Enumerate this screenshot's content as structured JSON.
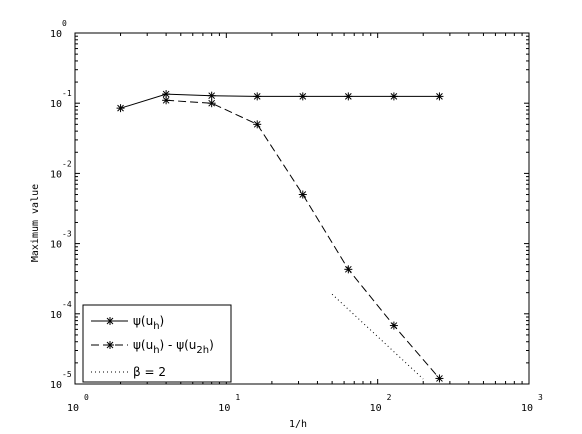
{
  "chart_data": {
    "type": "line",
    "xlabel": "1/h",
    "ylabel": "Maximum value",
    "xscale": "log",
    "yscale": "log",
    "xlim": [
      1,
      1000
    ],
    "ylim": [
      1e-05,
      1
    ],
    "xticks": [
      {
        "base": "10",
        "exp": "0",
        "value": 1
      },
      {
        "base": "10",
        "exp": "1",
        "value": 10
      },
      {
        "base": "10",
        "exp": "2",
        "value": 100
      },
      {
        "base": "10",
        "exp": "3",
        "value": 1000
      }
    ],
    "yticks": [
      {
        "base": "10",
        "exp": "0",
        "value": 1
      },
      {
        "base": "10",
        "exp": "-1",
        "value": 0.1
      },
      {
        "base": "10",
        "exp": "-2",
        "value": 0.01
      },
      {
        "base": "10",
        "exp": "-3",
        "value": 0.001
      },
      {
        "base": "10",
        "exp": "-4",
        "value": 0.0001
      },
      {
        "base": "10",
        "exp": "-5",
        "value": 1e-05
      }
    ],
    "grid": false,
    "legend_position": "bottom-left",
    "series": [
      {
        "name": "ψ(u_h)",
        "style": "solid",
        "marker": "asterisk",
        "x": [
          2,
          4,
          8,
          16,
          32,
          64,
          128,
          256
        ],
        "y": [
          0.085,
          0.135,
          0.128,
          0.125,
          0.125,
          0.125,
          0.125,
          0.125
        ]
      },
      {
        "name": "ψ(u_h) - ψ(u_2h)",
        "style": "dashed",
        "marker": "asterisk",
        "x": [
          4,
          8,
          16,
          32,
          64,
          128,
          256
        ],
        "y": [
          0.11,
          0.1,
          0.05,
          0.005,
          0.00043,
          6.8e-05,
          1.2e-05
        ]
      },
      {
        "name": "β = 2",
        "style": "dotted",
        "marker": "none",
        "x": [
          50,
          200
        ],
        "y": [
          0.00019,
          1.18e-05
        ]
      }
    ],
    "legend": [
      {
        "prefix": "ψ(u",
        "sub1": "h",
        "suffix": ")",
        "sub2": "",
        "suffix2": ""
      },
      {
        "prefix": "ψ(u",
        "sub1": "h",
        "suffix": ") - ψ(u",
        "sub2": "2h",
        "suffix2": ")"
      },
      {
        "prefix": "β = 2",
        "sub1": "",
        "suffix": "",
        "sub2": "",
        "suffix2": ""
      }
    ]
  }
}
